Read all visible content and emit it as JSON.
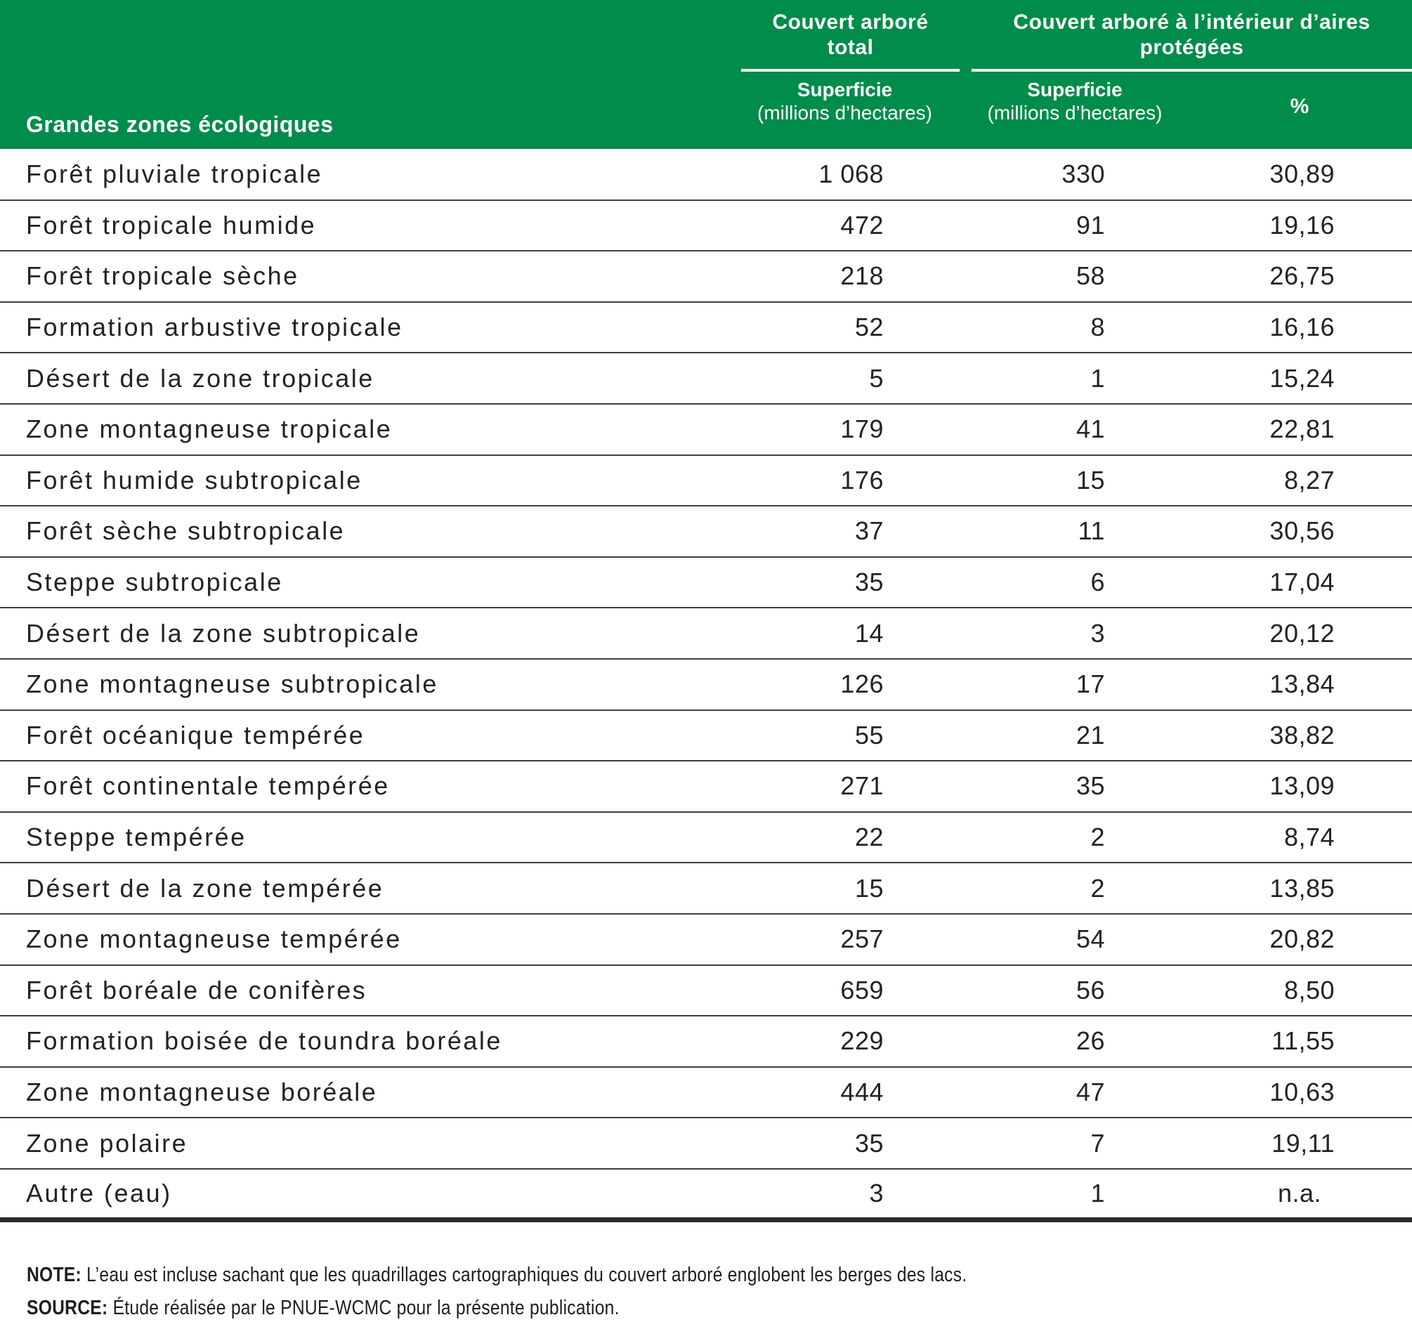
{
  "colors": {
    "header_green": "#008C4B",
    "header_text": "#ffffff",
    "body_text": "#232323",
    "row_separator": "#3f3f3f"
  },
  "table": {
    "header": {
      "zone_col": "Grandes zones écologiques",
      "group_total_line1": "Couvert arboré",
      "group_total_line2": "total",
      "group_protected_line1": "Couvert arboré à l’intérieur d’aires",
      "group_protected_line2": "protégées",
      "total_sub_line1": "Superficie",
      "total_sub_line2": "(millions d’hectares)",
      "protected_sub_line1": "Superficie",
      "protected_sub_line2": "(millions d’hectares)",
      "percent_col": "%"
    },
    "rows": [
      {
        "zone": "Forêt pluviale tropicale",
        "total_area": "1 068",
        "protected_area": "330",
        "percent": "30,89"
      },
      {
        "zone": "Forêt tropicale humide",
        "total_area": "472",
        "protected_area": "91",
        "percent": "19,16"
      },
      {
        "zone": "Forêt tropicale sèche",
        "total_area": "218",
        "protected_area": "58",
        "percent": "26,75"
      },
      {
        "zone": "Formation arbustive tropicale",
        "total_area": "52",
        "protected_area": "8",
        "percent": "16,16"
      },
      {
        "zone": "Désert de la zone tropicale",
        "total_area": "5",
        "protected_area": "1",
        "percent": "15,24"
      },
      {
        "zone": "Zone montagneuse tropicale",
        "total_area": "179",
        "protected_area": "41",
        "percent": "22,81"
      },
      {
        "zone": "Forêt humide subtropicale",
        "total_area": "176",
        "protected_area": "15",
        "percent": "8,27"
      },
      {
        "zone": "Forêt sèche subtropicale",
        "total_area": "37",
        "protected_area": "11",
        "percent": "30,56"
      },
      {
        "zone": "Steppe subtropicale",
        "total_area": "35",
        "protected_area": "6",
        "percent": "17,04"
      },
      {
        "zone": "Désert de la zone subtropicale",
        "total_area": "14",
        "protected_area": "3",
        "percent": "20,12"
      },
      {
        "zone": "Zone montagneuse subtropicale",
        "total_area": "126",
        "protected_area": "17",
        "percent": "13,84"
      },
      {
        "zone": "Forêt océanique tempérée",
        "total_area": "55",
        "protected_area": "21",
        "percent": "38,82"
      },
      {
        "zone": "Forêt continentale tempérée",
        "total_area": "271",
        "protected_area": "35",
        "percent": "13,09"
      },
      {
        "zone": "Steppe tempérée",
        "total_area": "22",
        "protected_area": "2",
        "percent": "8,74"
      },
      {
        "zone": "Désert de la zone tempérée",
        "total_area": "15",
        "protected_area": "2",
        "percent": "13,85"
      },
      {
        "zone": "Zone montagneuse tempérée",
        "total_area": "257",
        "protected_area": "54",
        "percent": "20,82"
      },
      {
        "zone": "Forêt boréale de conifères",
        "total_area": "659",
        "protected_area": "56",
        "percent": "8,50"
      },
      {
        "zone": "Formation boisée de toundra boréale",
        "total_area": "229",
        "protected_area": "26",
        "percent": "11,55"
      },
      {
        "zone": "Zone montagneuse boréale",
        "total_area": "444",
        "protected_area": "47",
        "percent": "10,63"
      },
      {
        "zone": "Zone polaire",
        "total_area": "35",
        "protected_area": "7",
        "percent": "19,11"
      },
      {
        "zone": "Autre (eau)",
        "total_area": "3",
        "protected_area": "1",
        "percent": "n.a."
      }
    ]
  },
  "footer": {
    "note_label": "NOTE:",
    "note_text": "L’eau est incluse sachant que les quadrillages cartographiques du couvert arboré englobent les berges des lacs.",
    "source_label": "SOURCE:",
    "source_text": "Étude réalisée par le PNUE-WCMC pour la présente publication."
  }
}
